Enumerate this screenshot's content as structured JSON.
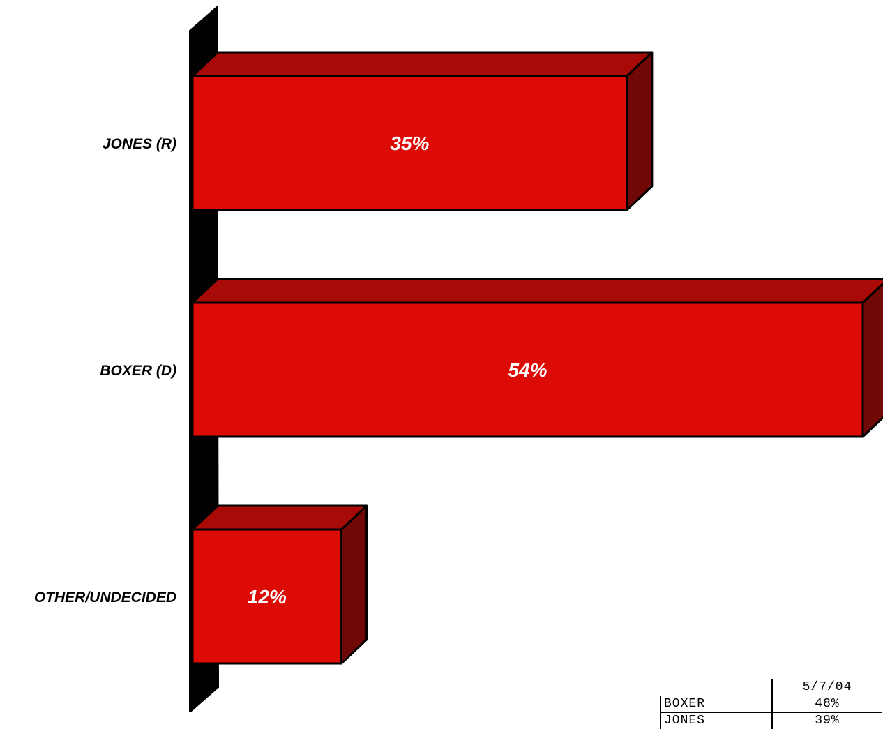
{
  "chart_data": {
    "type": "bar",
    "orientation": "horizontal",
    "style": "3d",
    "categories": [
      "JONES (R)",
      "BOXER (D)",
      "OTHER/UNDECIDED"
    ],
    "values": [
      35,
      54,
      12
    ],
    "value_labels": [
      "35%",
      "54%",
      "12%"
    ],
    "xlim": [
      0,
      54
    ],
    "grid": false,
    "colors": {
      "bar_front": "#dd0b06",
      "bar_top": "#a80a07",
      "bar_side": "#700806",
      "axis_wall": "#000000"
    }
  },
  "comparison_table": {
    "header": "5/7/04",
    "rows": [
      {
        "name": "BOXER",
        "value": "48%"
      },
      {
        "name": "JONES",
        "value": "39%"
      }
    ]
  }
}
